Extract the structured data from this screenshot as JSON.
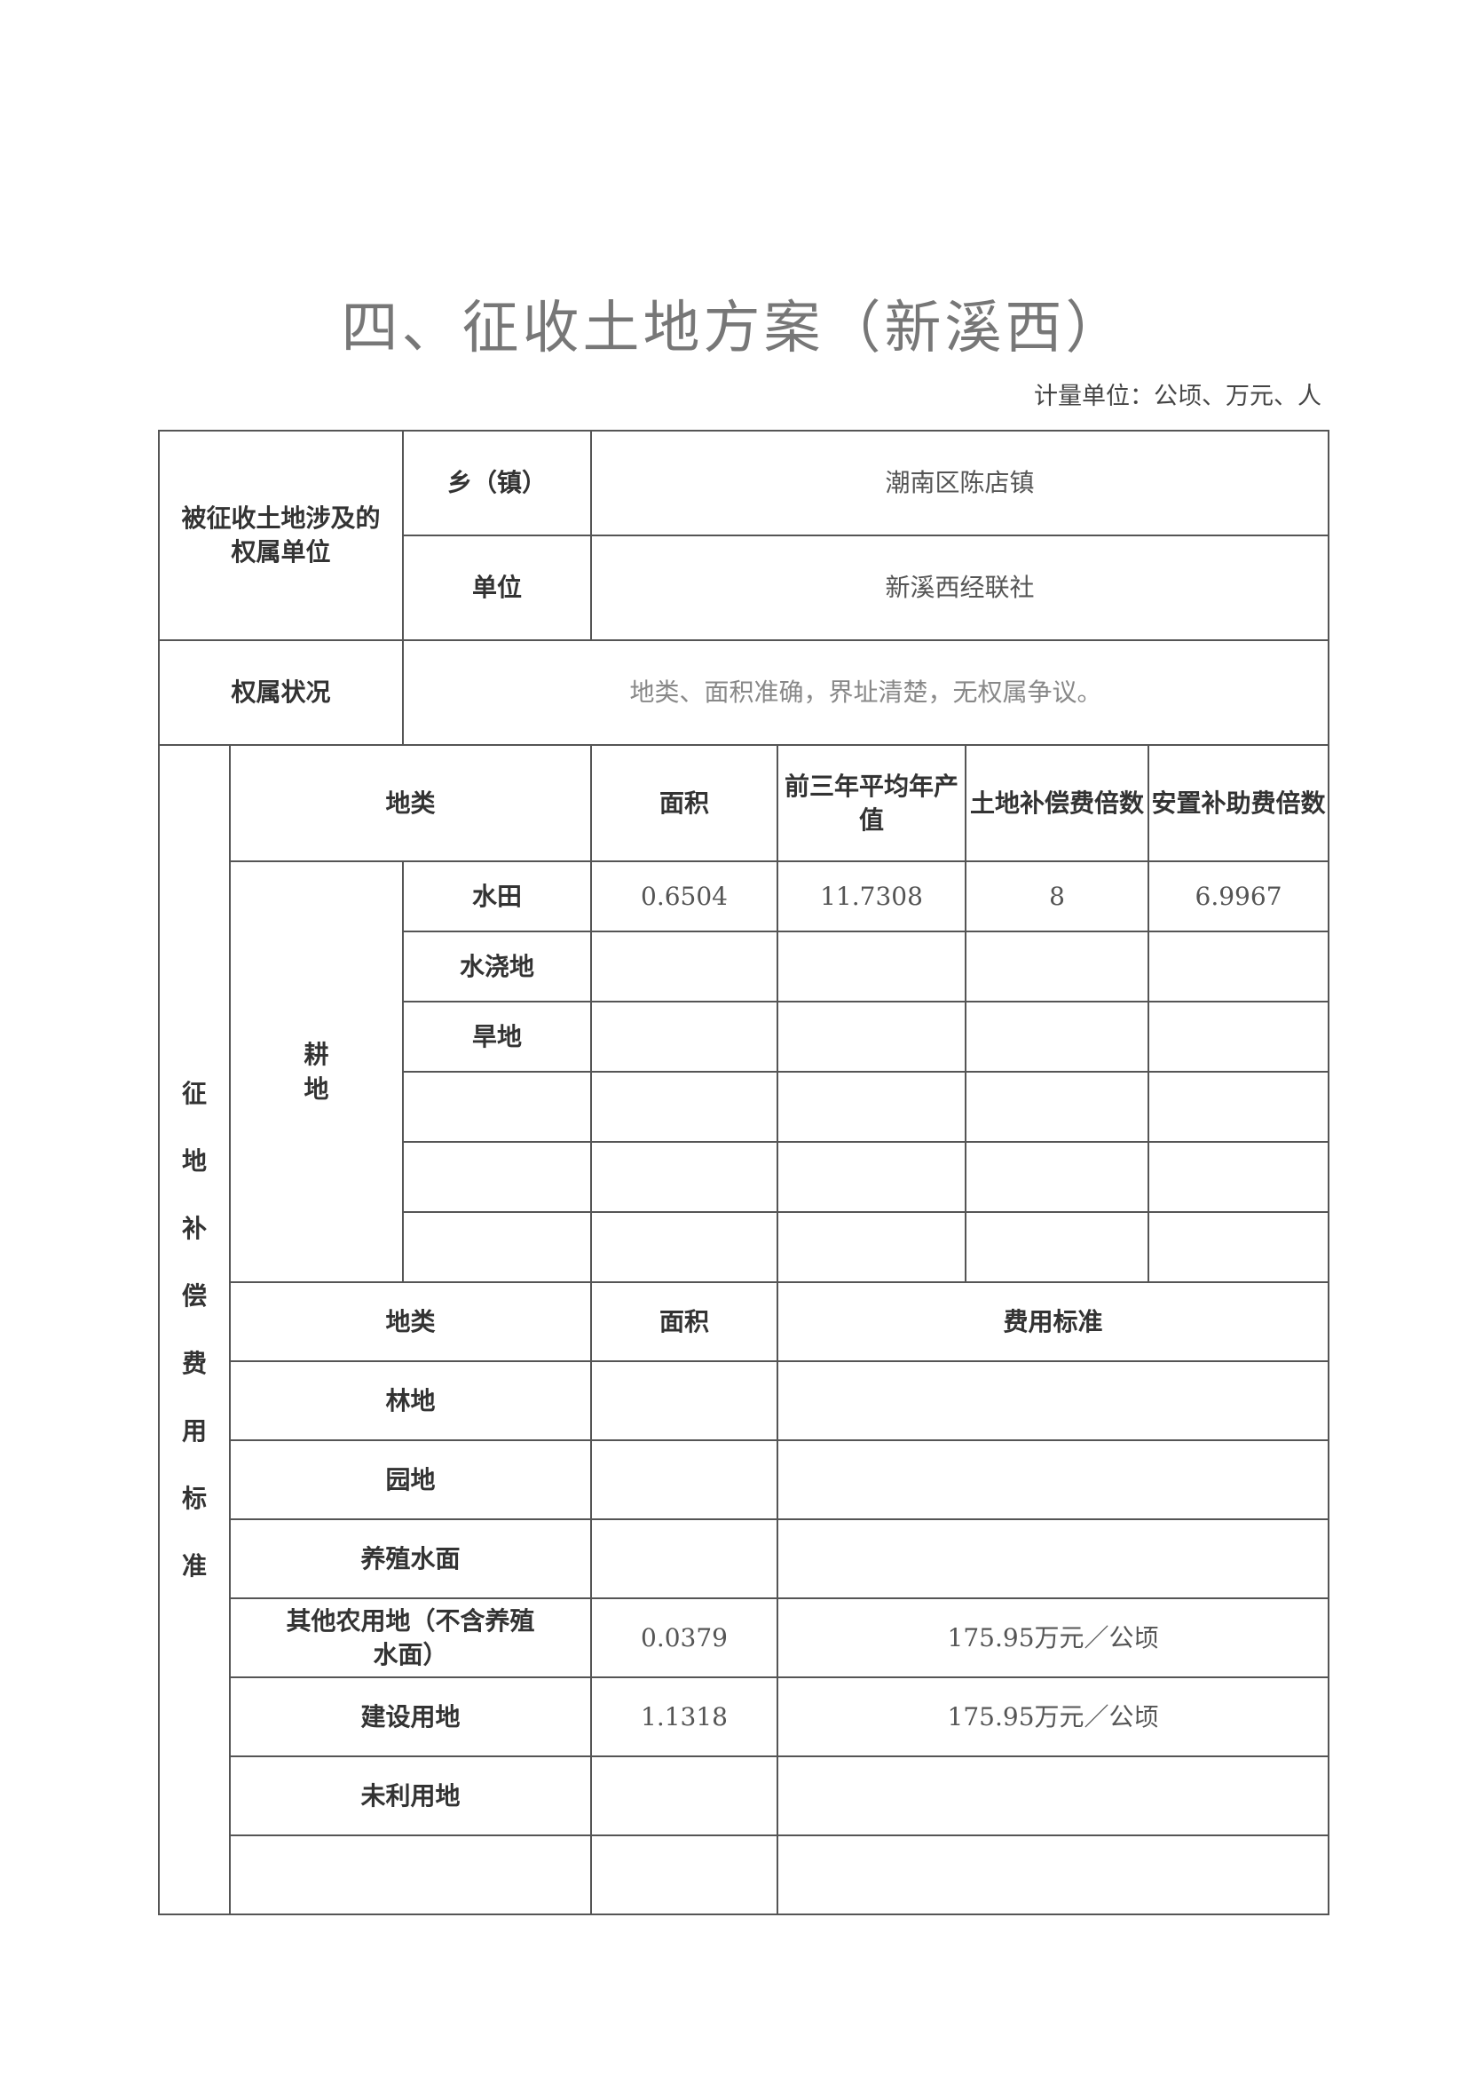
{
  "title": "四、征收土地方案（新溪西）",
  "unit_note": "计量单位：公顷、万元、人",
  "ownership": {
    "label": "被征收土地涉及的权属单位",
    "town_label": "乡（镇）",
    "town_value": "潮南区陈店镇",
    "unit_label": "单位",
    "unit_value": "新溪西经联社"
  },
  "status": {
    "label": "权属状况",
    "value": "地类、面积准确，界址清楚，无权属争议。"
  },
  "compensation": {
    "side_label": [
      "征",
      "地",
      "补",
      "偿",
      "费",
      "用",
      "标",
      "准"
    ],
    "cultivated_headers": [
      "地类",
      "面积",
      "前三年平均年产值",
      "土地补偿费倍数",
      "安置补助费倍数"
    ],
    "cultivated_group": "耕地",
    "cultivated_rows": [
      {
        "type": "水田",
        "area": "0.6504",
        "avg_output": "11.7308",
        "land_multiple": "8",
        "resettle_multiple": "6.9967"
      },
      {
        "type": "水浇地",
        "area": "",
        "avg_output": "",
        "land_multiple": "",
        "resettle_multiple": ""
      },
      {
        "type": "旱地",
        "area": "",
        "avg_output": "",
        "land_multiple": "",
        "resettle_multiple": ""
      },
      {
        "type": "",
        "area": "",
        "avg_output": "",
        "land_multiple": "",
        "resettle_multiple": ""
      },
      {
        "type": "",
        "area": "",
        "avg_output": "",
        "land_multiple": "",
        "resettle_multiple": ""
      },
      {
        "type": "",
        "area": "",
        "avg_output": "",
        "land_multiple": "",
        "resettle_multiple": ""
      }
    ],
    "other_headers": [
      "地类",
      "面积",
      "费用标准"
    ],
    "other_rows": [
      {
        "type": "林地",
        "area": "",
        "standard": ""
      },
      {
        "type": "园地",
        "area": "",
        "standard": ""
      },
      {
        "type": "养殖水面",
        "area": "",
        "standard": ""
      },
      {
        "type": "其他农用地（不含养殖水面）",
        "area": "0.0379",
        "standard": "175.95万元／公顷"
      },
      {
        "type": "建设用地",
        "area": "1.1318",
        "standard": "175.95万元／公顷"
      },
      {
        "type": "未利用地",
        "area": "",
        "standard": ""
      },
      {
        "type": "",
        "area": "",
        "standard": ""
      }
    ]
  }
}
